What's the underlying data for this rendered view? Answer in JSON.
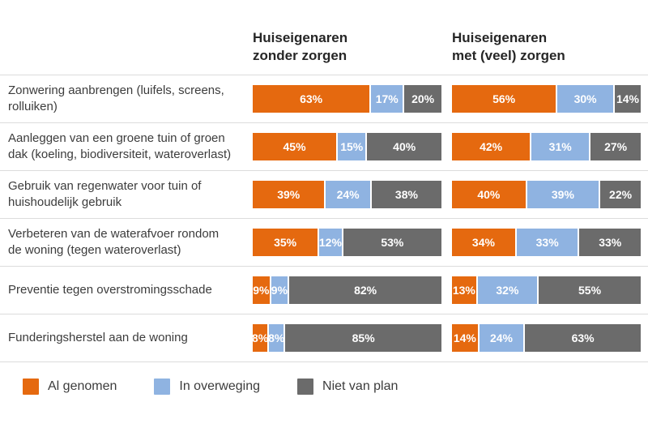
{
  "headers": {
    "left": {
      "line1": "Huiseigenaren",
      "line2": "zonder zorgen"
    },
    "right": {
      "line1": "Huiseigenaren",
      "line2": "met (veel) zorgen"
    }
  },
  "colors": {
    "al_genomen": "#E5690F",
    "in_overweging": "#8FB3E1",
    "niet_van_plan": "#6B6B6B",
    "separator": "#DCDCDC",
    "header_text": "#262626",
    "label_text": "#3C3C3C",
    "bar_value_text": "#FFFFFF"
  },
  "legend": {
    "items": [
      {
        "label": "Al genomen",
        "color": "#E5690F"
      },
      {
        "label": "In overweging",
        "color": "#8FB3E1"
      },
      {
        "label": "Niet van plan",
        "color": "#6B6B6B"
      }
    ]
  },
  "chart_data": {
    "type": "bar",
    "orientation": "horizontal",
    "stacked": true,
    "unit": "%",
    "xlim": [
      0,
      100
    ],
    "grid": false,
    "legend_position": "bottom",
    "groups": [
      "Huiseigenaren zonder zorgen",
      "Huiseigenaren met (veel) zorgen"
    ],
    "series_names": [
      "Al genomen",
      "In overweging",
      "Niet van plan"
    ],
    "rows": [
      {
        "label": "Zonwering aanbrengen (luifels, screens, rolluiken)",
        "zonder_zorgen": {
          "values": [
            63,
            17,
            20
          ],
          "labels": [
            "63%",
            "17%",
            "20%"
          ]
        },
        "met_zorgen": {
          "values": [
            56,
            30,
            14
          ],
          "labels": [
            "56%",
            "30%",
            "14%"
          ]
        }
      },
      {
        "label": "Aanleggen van een groene tuin of groen dak (koeling, biodiversiteit, wateroverlast)",
        "zonder_zorgen": {
          "values": [
            45,
            15,
            40
          ],
          "labels": [
            "45%",
            "15%",
            "40%"
          ]
        },
        "met_zorgen": {
          "values": [
            42,
            31,
            27
          ],
          "labels": [
            "42%",
            "31%",
            "27%"
          ]
        }
      },
      {
        "label": "Gebruik van regenwater voor tuin of huishoudelijk gebruik",
        "zonder_zorgen": {
          "values": [
            39,
            24,
            38
          ],
          "labels": [
            "39%",
            "24%",
            "38%"
          ]
        },
        "met_zorgen": {
          "values": [
            40,
            39,
            22
          ],
          "labels": [
            "40%",
            "39%",
            "22%"
          ]
        }
      },
      {
        "label": "Verbeteren van de waterafvoer rondom de woning (tegen wateroverlast)",
        "zonder_zorgen": {
          "values": [
            35,
            12,
            53
          ],
          "labels": [
            "35%",
            "12%",
            "53%"
          ]
        },
        "met_zorgen": {
          "values": [
            34,
            33,
            33
          ],
          "labels": [
            "34%",
            "33%",
            "33%"
          ]
        }
      },
      {
        "label": "Preventie tegen overstromingsschade",
        "zonder_zorgen": {
          "values": [
            9,
            9,
            82
          ],
          "labels": [
            "9%",
            "9%",
            "82%"
          ]
        },
        "met_zorgen": {
          "values": [
            13,
            32,
            55
          ],
          "labels": [
            "13%",
            "32%",
            "55%"
          ]
        }
      },
      {
        "label": "Funderingsherstel aan de woning",
        "zonder_zorgen": {
          "values": [
            8,
            8,
            85
          ],
          "labels": [
            "8%",
            "8%",
            "85%"
          ]
        },
        "met_zorgen": {
          "values": [
            14,
            24,
            63
          ],
          "labels": [
            "14%",
            "24%",
            "63%"
          ]
        }
      }
    ]
  }
}
